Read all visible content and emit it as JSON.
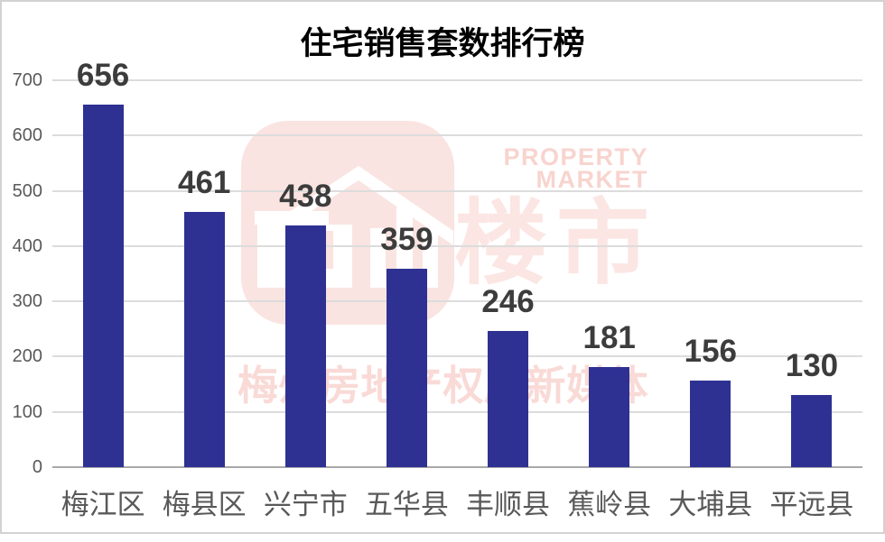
{
  "chart_data": {
    "type": "bar",
    "title": "住宅销售套数排行榜",
    "categories": [
      "梅江区",
      "梅县区",
      "兴宁市",
      "五华县",
      "丰顺县",
      "蕉岭县",
      "大埔县",
      "平远县"
    ],
    "values": [
      656,
      461,
      438,
      359,
      246,
      181,
      156,
      130
    ],
    "xlabel": "",
    "ylabel": "",
    "ylim": [
      0,
      700
    ],
    "ytick_interval": 100,
    "yticks": [
      0,
      100,
      200,
      300,
      400,
      500,
      600,
      700
    ],
    "grid": true,
    "legend": "none",
    "bar_color": "#2e3192",
    "value_label_color": "#3c3c3c",
    "axis_text_color": "#595959",
    "gridline_color": "#dcdcdc",
    "axis_line_color": "#a8a8a8"
  },
  "watermark": {
    "icon": "house-buildings-logo-icon",
    "brand_cn": "楼市",
    "en_line1": "PROPERTY",
    "en_line2": "MARKET",
    "tagline": "梅州房地产权威新媒体",
    "icon_bg_color": "#fae4e1",
    "brand_color": "#fbe6e3",
    "en_color": "#f8d4cf",
    "tagline_color": "#f9dad6"
  },
  "frame": {
    "border_color": "#d2d2d2",
    "background": "#ffffff"
  }
}
